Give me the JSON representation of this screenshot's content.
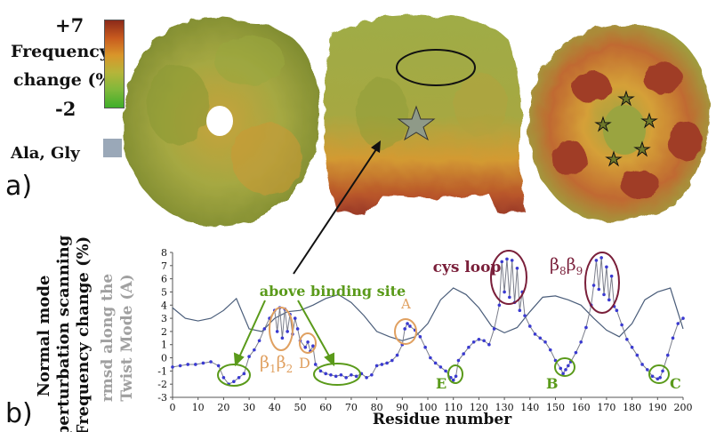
{
  "legend": {
    "max_label": "+7",
    "title_line1": "Frequency",
    "title_line2": "change (%)",
    "min_label": "-2",
    "swatch_label": "Ala, Gly",
    "gradient_colors": [
      "#8b2a1a",
      "#c85a1e",
      "#d9962a",
      "#b5b53a",
      "#7fb83a",
      "#3fae2a"
    ],
    "swatch_color": "#9aa8b8"
  },
  "panels": {
    "a": "a)",
    "b": "b)"
  },
  "structure_colors": {
    "olive": "#9aa440",
    "olive_dark": "#6f7a2a",
    "amber": "#d39a32",
    "rust": "#a5402a",
    "blue_grey": "#9aaac0"
  },
  "chart_data": {
    "type": "line",
    "title": "",
    "xlabel": "Residue number",
    "ylabel_lines": [
      "Normal mode",
      "perturbation scanning",
      "Frequency change (%)"
    ],
    "ylabel2_lines": [
      "rmsd along the",
      "Twist Mode (A)"
    ],
    "xlim": [
      0,
      200
    ],
    "ylim": [
      -3,
      8
    ],
    "xticks": [
      0,
      10,
      20,
      30,
      40,
      50,
      60,
      70,
      80,
      90,
      100,
      110,
      120,
      130,
      140,
      150,
      160,
      170,
      180,
      190,
      200
    ],
    "yticks": [
      -3,
      -2,
      -1,
      0,
      1,
      2,
      3,
      4,
      5,
      6,
      7,
      8
    ],
    "grid": false,
    "series": [
      {
        "name": "",
        "color": "#4a5d7a",
        "x": [
          0,
          5,
          10,
          15,
          20,
          25,
          30,
          35,
          40,
          45,
          50,
          55,
          60,
          65,
          70,
          75,
          80,
          85,
          90,
          95,
          100,
          105,
          110,
          115,
          120,
          125,
          130,
          135,
          140,
          145,
          150,
          155,
          160,
          165,
          170,
          175,
          180,
          185,
          190,
          195,
          200
        ],
        "y": [
          3.8,
          3.0,
          2.8,
          3.0,
          3.6,
          4.5,
          2.2,
          2.0,
          3.0,
          3.5,
          3.6,
          4.0,
          4.5,
          4.8,
          4.2,
          3.2,
          2.0,
          1.6,
          1.3,
          1.6,
          2.6,
          4.4,
          5.3,
          4.8,
          3.8,
          2.4,
          1.9,
          2.3,
          3.5,
          4.6,
          4.7,
          4.4,
          4.0,
          3.0,
          2.1,
          1.6,
          2.6,
          4.4,
          5.0,
          5.3,
          2.2
        ]
      },
      {
        "name": "",
        "color": "#7a7d8a",
        "marker_color": "#3a3ad0",
        "x": [
          0,
          3,
          6,
          9,
          12,
          15,
          18,
          20,
          22,
          24,
          26,
          28,
          30,
          32,
          34,
          36,
          38,
          40,
          41,
          42,
          43,
          44,
          45,
          46,
          47,
          48,
          49,
          50,
          52,
          53,
          54,
          55,
          56,
          58,
          60,
          62,
          64,
          66,
          68,
          70,
          72,
          74,
          76,
          78,
          80,
          82,
          84,
          86,
          88,
          90,
          91,
          92,
          93,
          95,
          97,
          99,
          101,
          103,
          105,
          107,
          109,
          110,
          111,
          112,
          114,
          116,
          118,
          120,
          122,
          124,
          126,
          128,
          129,
          130,
          131,
          132,
          133,
          134,
          135,
          136,
          137,
          138,
          140,
          142,
          144,
          146,
          148,
          150,
          152,
          153,
          154,
          155,
          156,
          158,
          160,
          162,
          164,
          165,
          166,
          167,
          168,
          169,
          170,
          171,
          172,
          173,
          174,
          176,
          178,
          180,
          182,
          184,
          186,
          188,
          190,
          191,
          192,
          194,
          196,
          198,
          200
        ],
        "y": [
          -0.7,
          -0.6,
          -0.5,
          -0.5,
          -0.4,
          -0.3,
          -0.6,
          -1.5,
          -2.0,
          -1.8,
          -1.5,
          -1.2,
          0.1,
          0.6,
          1.3,
          2.2,
          3.0,
          3.6,
          2.0,
          3.8,
          1.5,
          3.7,
          2.0,
          3.3,
          1.8,
          3.0,
          2.2,
          1.3,
          0.8,
          1.2,
          0.5,
          0.9,
          -0.5,
          -1.0,
          -1.2,
          -1.3,
          -1.4,
          -1.3,
          -1.5,
          -1.3,
          -1.4,
          -1.2,
          -1.5,
          -1.3,
          -0.6,
          -0.5,
          -0.4,
          -0.2,
          0.2,
          1.0,
          2.2,
          2.6,
          2.4,
          2.1,
          1.6,
          0.8,
          0.0,
          -0.4,
          -0.7,
          -1.0,
          -1.5,
          -1.7,
          -1.4,
          -0.2,
          0.3,
          0.8,
          1.2,
          1.4,
          1.3,
          1.0,
          2.2,
          4.0,
          7.3,
          5.0,
          7.5,
          4.6,
          7.4,
          4.2,
          6.8,
          3.6,
          5.0,
          3.2,
          2.4,
          1.8,
          1.5,
          1.2,
          0.6,
          -0.2,
          -0.8,
          -1.2,
          -0.9,
          -0.6,
          -0.3,
          0.4,
          1.2,
          2.3,
          4.0,
          5.5,
          7.4,
          5.2,
          7.6,
          4.8,
          6.9,
          4.4,
          6.2,
          3.9,
          3.6,
          2.5,
          1.4,
          0.8,
          0.2,
          -0.5,
          -0.9,
          -1.4,
          -1.6,
          -1.5,
          -1.0,
          0.2,
          1.5,
          2.6,
          3.0
        ]
      }
    ],
    "annotations": [
      {
        "text": "above binding site",
        "color": "#5a9a1a"
      },
      {
        "text": "cys loop",
        "color": "#7a1f3a"
      },
      {
        "text": "β",
        "sub": "8",
        "text2": "β",
        "sub2": "9",
        "color": "#7a1f3a"
      },
      {
        "text": "β",
        "sub": "1",
        "text2": "β",
        "sub2": "2",
        "color": "#e0a060"
      },
      {
        "text": "A",
        "color": "#e0a060"
      },
      {
        "text": "D",
        "color": "#e0a060"
      },
      {
        "text": "E",
        "color": "#5a9a1a"
      },
      {
        "text": "B",
        "color": "#5a9a1a"
      },
      {
        "text": "C",
        "color": "#5a9a1a"
      }
    ]
  }
}
